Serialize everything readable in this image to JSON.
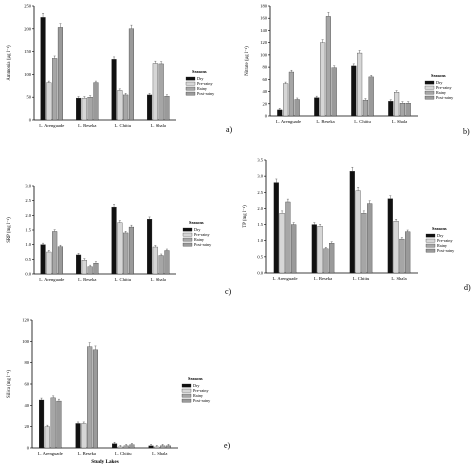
{
  "patterns": {
    "Dry": "solid-black",
    "Pre-rainy": "light-grey",
    "Rainy": "crosshatch",
    "Post-rainy": "medium-grey"
  },
  "chart_data": [
    {
      "type": "bar",
      "letter": "a)",
      "ylabel": "Ammonia (µg l⁻¹)",
      "xlabel": "",
      "ylim": [
        0,
        250
      ],
      "yticks": [
        "0",
        "50",
        "100",
        "150",
        "200",
        "250"
      ],
      "categories": [
        "L. Arenguade",
        "L. Beseka",
        "L. Chittu",
        "L. Shala"
      ],
      "legend_title": "Seasons",
      "legend_labels": [
        "Dry",
        "Pre-rainy",
        "Rainy",
        "Post-rainy"
      ],
      "series": [
        {
          "name": "Dry",
          "values": [
            225,
            48,
            133,
            55
          ]
        },
        {
          "name": "Pre-rainy",
          "values": [
            82,
            48,
            65,
            124
          ]
        },
        {
          "name": "Rainy",
          "values": [
            135,
            50,
            55,
            123
          ]
        },
        {
          "name": "Post-rainy",
          "values": [
            203,
            82,
            200,
            52
          ]
        }
      ]
    },
    {
      "type": "bar",
      "letter": "b)",
      "ylabel": "Nitrate (µg l⁻¹)",
      "xlabel": "",
      "ylim": [
        0,
        180
      ],
      "yticks": [
        "0",
        "20",
        "40",
        "60",
        "80",
        "100",
        "120",
        "140",
        "160",
        "180"
      ],
      "categories": [
        "L. Arenguade",
        "L. Beseka",
        "L. Chittu",
        "L. Shala"
      ],
      "legend_title": "Seasons",
      "legend_labels": [
        "Dry",
        "Pre-rainy",
        "Rainy",
        "Post-rainy"
      ],
      "series": [
        {
          "name": "Dry",
          "values": [
            10,
            30,
            82,
            24
          ]
        },
        {
          "name": "Pre-rainy",
          "values": [
            53,
            120,
            103,
            39
          ]
        },
        {
          "name": "Rainy",
          "values": [
            72,
            163,
            26,
            21
          ]
        },
        {
          "name": "Post-rainy",
          "values": [
            27,
            79,
            64,
            21
          ]
        }
      ]
    },
    {
      "type": "bar",
      "letter": "c)",
      "ylabel": "SRP (mg l⁻¹)",
      "xlabel": "",
      "ylim": [
        0,
        3.0
      ],
      "yticks": [
        "0.0",
        "0.5",
        "1.0",
        "1.5",
        "2.0",
        "2.5",
        "3.0"
      ],
      "categories": [
        "L. Arenguade",
        "L. Beseka",
        "L. Chittu",
        "L. Shala"
      ],
      "legend_title": "Seasons",
      "legend_labels": [
        "Dry",
        "Pre-rainy",
        "Rainy",
        "Post-rainy"
      ],
      "series": [
        {
          "name": "Dry",
          "values": [
            1.0,
            0.65,
            2.28,
            1.87
          ]
        },
        {
          "name": "Pre-rainy",
          "values": [
            0.75,
            0.47,
            1.75,
            0.92
          ]
        },
        {
          "name": "Rainy",
          "values": [
            1.45,
            0.25,
            1.4,
            0.63
          ]
        },
        {
          "name": "Post-rainy",
          "values": [
            0.93,
            0.37,
            1.6,
            0.8
          ]
        }
      ]
    },
    {
      "type": "bar",
      "letter": "d)",
      "ylabel": "TP (mg l⁻¹)",
      "xlabel": "",
      "ylim": [
        0,
        3.5
      ],
      "yticks": [
        "0.0",
        "0.5",
        "1.0",
        "1.5",
        "2.0",
        "2.5",
        "3.0",
        "3.5"
      ],
      "categories": [
        "L. Arenguade",
        "L. Beseka",
        "L. Chittu",
        "L. Shala"
      ],
      "legend_title": "Seasons",
      "legend_labels": [
        "Dry",
        "Pre-rainy",
        "Rainy",
        "Post-rainy"
      ],
      "series": [
        {
          "name": "Dry",
          "values": [
            2.8,
            1.5,
            3.15,
            2.3
          ]
        },
        {
          "name": "Pre-rainy",
          "values": [
            1.85,
            1.45,
            2.55,
            1.6
          ]
        },
        {
          "name": "Rainy",
          "values": [
            2.2,
            0.75,
            1.85,
            1.05
          ]
        },
        {
          "name": "Post-rainy",
          "values": [
            1.5,
            0.92,
            2.15,
            1.28
          ]
        }
      ]
    },
    {
      "type": "bar",
      "letter": "e)",
      "ylabel": "Silica (mg l⁻¹)",
      "xlabel": "Study Lakes",
      "ylim": [
        0,
        120
      ],
      "yticks": [
        "0",
        "20",
        "40",
        "60",
        "80",
        "100",
        "120"
      ],
      "categories": [
        "L. Arenguade",
        "L. Beseka",
        "L. Chittu",
        "L. Shala"
      ],
      "legend_title": "Seasons",
      "legend_labels": [
        "Dry",
        "Pre-rainy",
        "Rainy",
        "Post-rainy"
      ],
      "series": [
        {
          "name": "Dry",
          "values": [
            45,
            23,
            4,
            2
          ]
        },
        {
          "name": "Pre-rainy",
          "values": [
            20,
            23,
            1,
            1
          ]
        },
        {
          "name": "Rainy",
          "values": [
            47,
            95,
            2,
            2
          ]
        },
        {
          "name": "Post-rainy",
          "values": [
            44,
            92,
            3,
            2
          ]
        }
      ]
    }
  ]
}
